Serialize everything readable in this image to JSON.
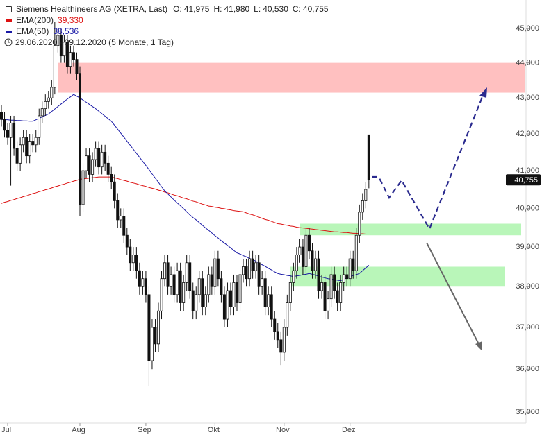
{
  "chart_data": {
    "type": "candlestick",
    "title": "Siemens Healthineers AG (XETRA, Last)",
    "ohlc_header": [
      {
        "label": "O:",
        "value": "41,975"
      },
      {
        "label": "H:",
        "value": "41,980"
      },
      {
        "label": "L:",
        "value": "40,530"
      },
      {
        "label": "C:",
        "value": "40,755"
      }
    ],
    "date_range": "29.06.2020 - 09.12.2020 (5 Monate, 1 Tag)",
    "last_label": "40,755",
    "candle_color": "#111111",
    "log_scale": true,
    "ylim": [
      34750,
      45850
    ],
    "yticks": [
      {
        "value": 35000,
        "label": "35,000"
      },
      {
        "value": 36000,
        "label": "36,000"
      },
      {
        "value": 37000,
        "label": "37,000"
      },
      {
        "value": 38000,
        "label": "38,000"
      },
      {
        "value": 39000,
        "label": "39,000"
      },
      {
        "value": 40000,
        "label": "40,000"
      },
      {
        "value": 41000,
        "label": "41,000"
      },
      {
        "value": 42000,
        "label": "42,000"
      },
      {
        "value": 43000,
        "label": "43,000"
      },
      {
        "value": 44000,
        "label": "44,000"
      },
      {
        "value": 45000,
        "label": "45,000"
      }
    ],
    "categories": [
      null,
      null,
      "Jul",
      null,
      null,
      null,
      null,
      null,
      null,
      null,
      null,
      null,
      null,
      null,
      null,
      null,
      null,
      null,
      null,
      null,
      null,
      null,
      null,
      null,
      null,
      "Aug",
      null,
      null,
      null,
      null,
      null,
      null,
      null,
      null,
      null,
      null,
      null,
      null,
      null,
      null,
      null,
      null,
      null,
      null,
      null,
      null,
      "Sep",
      null,
      null,
      null,
      null,
      null,
      null,
      null,
      null,
      null,
      null,
      null,
      null,
      null,
      null,
      null,
      null,
      null,
      null,
      null,
      null,
      null,
      "Okt",
      null,
      null,
      null,
      null,
      null,
      null,
      null,
      null,
      null,
      null,
      null,
      null,
      null,
      null,
      null,
      null,
      null,
      null,
      null,
      null,
      null,
      "Nov",
      null,
      null,
      null,
      null,
      null,
      null,
      null,
      null,
      null,
      null,
      null,
      null,
      null,
      null,
      null,
      null,
      null,
      null,
      null,
      null,
      "Dez",
      null,
      null,
      null,
      null,
      null,
      null
    ],
    "open": [
      42600,
      42400,
      42100,
      41900,
      42300,
      41600,
      41200,
      41700,
      41900,
      41400,
      41800,
      41700,
      41900,
      42500,
      42700,
      42900,
      43000,
      43300,
      44500,
      44800,
      44200,
      44600,
      43900,
      44300,
      44100,
      43700,
      40100,
      41000,
      41400,
      40900,
      41300,
      41600,
      41100,
      41500,
      41200,
      40900,
      40700,
      40200,
      39700,
      39800,
      39300,
      39000,
      38600,
      38800,
      38400,
      38000,
      38200,
      37800,
      36200,
      37000,
      36600,
      37400,
      38200,
      38600,
      38000,
      38300,
      37800,
      38400,
      37600,
      38100,
      38600,
      37900,
      37400,
      37800,
      38200,
      37500,
      37800,
      38300,
      38000,
      38700,
      38200,
      37800,
      37200,
      37900,
      37500,
      38100,
      37600,
      38300,
      38500,
      38200,
      38700,
      38400,
      38600,
      38000,
      38200,
      37500,
      37800,
      37200,
      36900,
      36700,
      36400,
      37000,
      37600,
      38100,
      38400,
      38800,
      39000,
      38500,
      39300,
      38900,
      38400,
      38700,
      37900,
      38100,
      37400,
      37700,
      38300,
      37900,
      37600,
      38100,
      38300,
      38200,
      38700,
      38400,
      39300,
      39900,
      40200,
      41975
    ],
    "high": [
      42800,
      42600,
      42300,
      42500,
      42500,
      41800,
      41900,
      42100,
      42100,
      42000,
      42000,
      42100,
      42700,
      42900,
      43100,
      43200,
      43500,
      45200,
      45000,
      45000,
      44800,
      44800,
      44500,
      44500,
      44300,
      43900,
      41200,
      41600,
      41600,
      41500,
      41800,
      41800,
      41700,
      41700,
      41400,
      41100,
      40900,
      40400,
      40000,
      40000,
      39500,
      39200,
      39000,
      39000,
      38600,
      38400,
      38400,
      38000,
      37200,
      37200,
      37600,
      38400,
      38800,
      38800,
      38500,
      38500,
      38600,
      38600,
      38300,
      38800,
      38800,
      38100,
      38000,
      38400,
      38400,
      38000,
      38500,
      38500,
      38900,
      38900,
      38400,
      38000,
      38100,
      38100,
      38300,
      38300,
      38500,
      38700,
      38700,
      38900,
      38900,
      38800,
      38800,
      38400,
      38400,
      38000,
      38000,
      37400,
      37100,
      36900,
      37200,
      37800,
      38300,
      38600,
      39000,
      39200,
      39200,
      39500,
      39500,
      39100,
      38900,
      38900,
      38300,
      38300,
      37900,
      38500,
      38500,
      38100,
      38300,
      38500,
      38500,
      38900,
      38900,
      39500,
      40100,
      40400,
      40700,
      41980
    ],
    "low": [
      42200,
      41900,
      41700,
      40600,
      41400,
      41000,
      41000,
      41500,
      41200,
      41200,
      41500,
      41500,
      41700,
      42300,
      42500,
      42700,
      42800,
      43100,
      44300,
      44000,
      44000,
      43700,
      43700,
      43900,
      43500,
      39800,
      39900,
      40800,
      40700,
      40700,
      41100,
      40900,
      40900,
      41000,
      40700,
      40500,
      40000,
      39500,
      39500,
      39100,
      38800,
      38400,
      38400,
      38200,
      37800,
      37800,
      37600,
      35600,
      36000,
      36400,
      36400,
      37200,
      38000,
      37800,
      37800,
      37600,
      37600,
      37400,
      37400,
      37900,
      37700,
      37200,
      37200,
      37600,
      37300,
      37300,
      37600,
      37800,
      37800,
      38000,
      37600,
      37000,
      37000,
      37300,
      37300,
      37400,
      37400,
      38100,
      38000,
      38000,
      38200,
      38200,
      37800,
      37800,
      37300,
      37300,
      37000,
      36700,
      36500,
      36100,
      36200,
      36800,
      37400,
      37900,
      38200,
      38600,
      38300,
      38300,
      38700,
      38200,
      38200,
      37700,
      37700,
      37200,
      37200,
      37500,
      37700,
      37400,
      37400,
      37900,
      38000,
      38000,
      38200,
      38200,
      39100,
      39700,
      40000,
      40530
    ],
    "close": [
      42400,
      42100,
      41900,
      42300,
      41600,
      41200,
      41700,
      41900,
      41400,
      41800,
      41700,
      41900,
      42500,
      42700,
      42900,
      43000,
      43300,
      44500,
      44800,
      44200,
      44600,
      43900,
      44300,
      44100,
      43700,
      40100,
      41000,
      41400,
      40900,
      41300,
      41600,
      41100,
      41500,
      41200,
      40900,
      40700,
      40200,
      39700,
      39800,
      39300,
      39000,
      38600,
      38800,
      38400,
      38000,
      38200,
      37800,
      36200,
      37000,
      36600,
      37400,
      38200,
      38600,
      38000,
      38300,
      37800,
      38400,
      37600,
      38100,
      38600,
      37900,
      37400,
      37800,
      38200,
      37500,
      37800,
      38300,
      38000,
      38700,
      38200,
      37800,
      37200,
      37900,
      37500,
      38100,
      37600,
      38300,
      38500,
      38200,
      38700,
      38400,
      38600,
      38000,
      38200,
      37500,
      37800,
      37200,
      36900,
      36700,
      36400,
      37000,
      37600,
      38100,
      38400,
      38800,
      39000,
      38500,
      39300,
      38900,
      38400,
      38700,
      37900,
      38100,
      37400,
      37700,
      38300,
      37900,
      37600,
      38100,
      38300,
      38200,
      38700,
      38400,
      39300,
      39900,
      40200,
      40500,
      40755
    ],
    "series": [
      {
        "name": "EMA(200)",
        "color": "#dd1111",
        "last_value_label": "39,330",
        "values": [
          40130,
          40160,
          40180,
          40210,
          40230,
          40260,
          40280,
          40310,
          40330,
          40360,
          40390,
          40410,
          40440,
          40460,
          40490,
          40510,
          40540,
          40570,
          40590,
          40620,
          40640,
          40670,
          40690,
          40720,
          40740,
          40770,
          40780,
          40790,
          40800,
          40810,
          40820,
          40830,
          40830,
          40830,
          40830,
          40830,
          40810,
          40790,
          40760,
          40740,
          40720,
          40690,
          40670,
          40650,
          40620,
          40600,
          40580,
          40550,
          40530,
          40510,
          40480,
          40460,
          40430,
          40410,
          40380,
          40350,
          40330,
          40300,
          40270,
          40250,
          40220,
          40190,
          40170,
          40140,
          40110,
          40090,
          40060,
          40050,
          40030,
          40020,
          40000,
          39990,
          39970,
          39960,
          39940,
          39930,
          39920,
          39910,
          39880,
          39850,
          39830,
          39800,
          39770,
          39740,
          39710,
          39690,
          39660,
          39630,
          39600,
          39590,
          39570,
          39560,
          39540,
          39530,
          39510,
          39500,
          39490,
          39480,
          39470,
          39460,
          39450,
          39440,
          39430,
          39420,
          39410,
          39400,
          39390,
          39390,
          39380,
          39370,
          39370,
          39360,
          39350,
          39350,
          39340,
          39340,
          39330,
          39330
        ]
      },
      {
        "name": "EMA(50)",
        "color": "#1a1aa6",
        "last_value_label": "38,536",
        "values": [
          42400,
          42390,
          42390,
          42380,
          42380,
          42370,
          42370,
          42360,
          42360,
          42350,
          42350,
          42390,
          42430,
          42470,
          42510,
          42550,
          42620,
          42690,
          42760,
          42830,
          42900,
          42970,
          43030,
          43100,
          43050,
          43000,
          42940,
          42880,
          42820,
          42760,
          42700,
          42630,
          42560,
          42490,
          42420,
          42350,
          42240,
          42130,
          42020,
          41910,
          41800,
          41690,
          41580,
          41470,
          41360,
          41250,
          41140,
          41030,
          40910,
          40800,
          40690,
          40570,
          40460,
          40380,
          40300,
          40220,
          40140,
          40070,
          39990,
          39910,
          39830,
          39760,
          39700,
          39630,
          39560,
          39490,
          39430,
          39360,
          39290,
          39230,
          39160,
          39100,
          39040,
          38980,
          38910,
          38850,
          38820,
          38780,
          38750,
          38710,
          38680,
          38640,
          38590,
          38550,
          38510,
          38460,
          38420,
          38370,
          38330,
          38310,
          38300,
          38280,
          38270,
          38250,
          38270,
          38280,
          38300,
          38310,
          38330,
          38310,
          38290,
          38260,
          38240,
          38220,
          38200,
          38190,
          38180,
          38160,
          38150,
          38180,
          38220,
          38250,
          38280,
          38300,
          38330,
          38400,
          38470,
          38536
        ]
      }
    ],
    "zones": [
      {
        "from": 43150,
        "to": 44000,
        "color": "#ffbdbd"
      },
      {
        "from": 39300,
        "to": 39600,
        "color": "#b5f5b5"
      },
      {
        "from": 38000,
        "to": 38500,
        "color": "#b5f5b5"
      }
    ]
  }
}
